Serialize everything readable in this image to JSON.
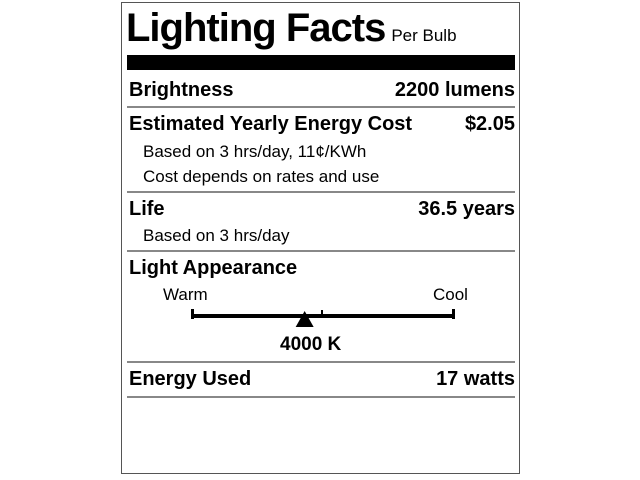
{
  "title": "Lighting Facts",
  "subtitle": "Per Bulb",
  "brightness": {
    "label": "Brightness",
    "value": "2200 lumens"
  },
  "energy_cost": {
    "label": "Estimated Yearly Energy Cost",
    "value": "$2.05",
    "note1": "Based on 3 hrs/day, 11¢/KWh",
    "note2": "Cost depends on rates and use"
  },
  "life": {
    "label": "Life",
    "value": "36.5 years",
    "note": "Based on 3 hrs/day"
  },
  "light_appearance": {
    "label": "Light Appearance",
    "warm_label": "Warm",
    "cool_label": "Cool",
    "value": "4000 K",
    "position_fraction": 0.43
  },
  "energy_used": {
    "label": "Energy Used",
    "value": "17 watts"
  }
}
